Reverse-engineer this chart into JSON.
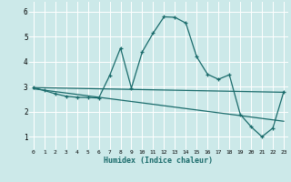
{
  "xlabel": "Humidex (Indice chaleur)",
  "bg_color": "#cce9e9",
  "grid_color": "#ffffff",
  "line_color": "#1a6b6b",
  "xlim": [
    0,
    23
  ],
  "ylim": [
    0.5,
    6.4
  ],
  "yticks": [
    1,
    2,
    3,
    4,
    5,
    6
  ],
  "xticks": [
    0,
    1,
    2,
    3,
    4,
    5,
    6,
    7,
    8,
    9,
    10,
    11,
    12,
    13,
    14,
    15,
    16,
    17,
    18,
    19,
    20,
    21,
    22,
    23
  ],
  "main_x": [
    0,
    1,
    2,
    3,
    4,
    5,
    6,
    7,
    8,
    9,
    10,
    11,
    12,
    13,
    14,
    15,
    16,
    17,
    18,
    19,
    20,
    21,
    22,
    23
  ],
  "main_y": [
    2.97,
    2.85,
    2.72,
    2.62,
    2.58,
    2.57,
    2.55,
    3.45,
    4.55,
    2.95,
    4.4,
    5.15,
    5.8,
    5.78,
    5.55,
    4.2,
    3.5,
    3.3,
    3.48,
    1.9,
    1.4,
    1.0,
    1.35,
    2.8
  ],
  "line1_x": [
    0,
    23
  ],
  "line1_y": [
    2.97,
    2.78
  ],
  "line2_x": [
    0,
    23
  ],
  "line2_y": [
    2.92,
    1.62
  ]
}
